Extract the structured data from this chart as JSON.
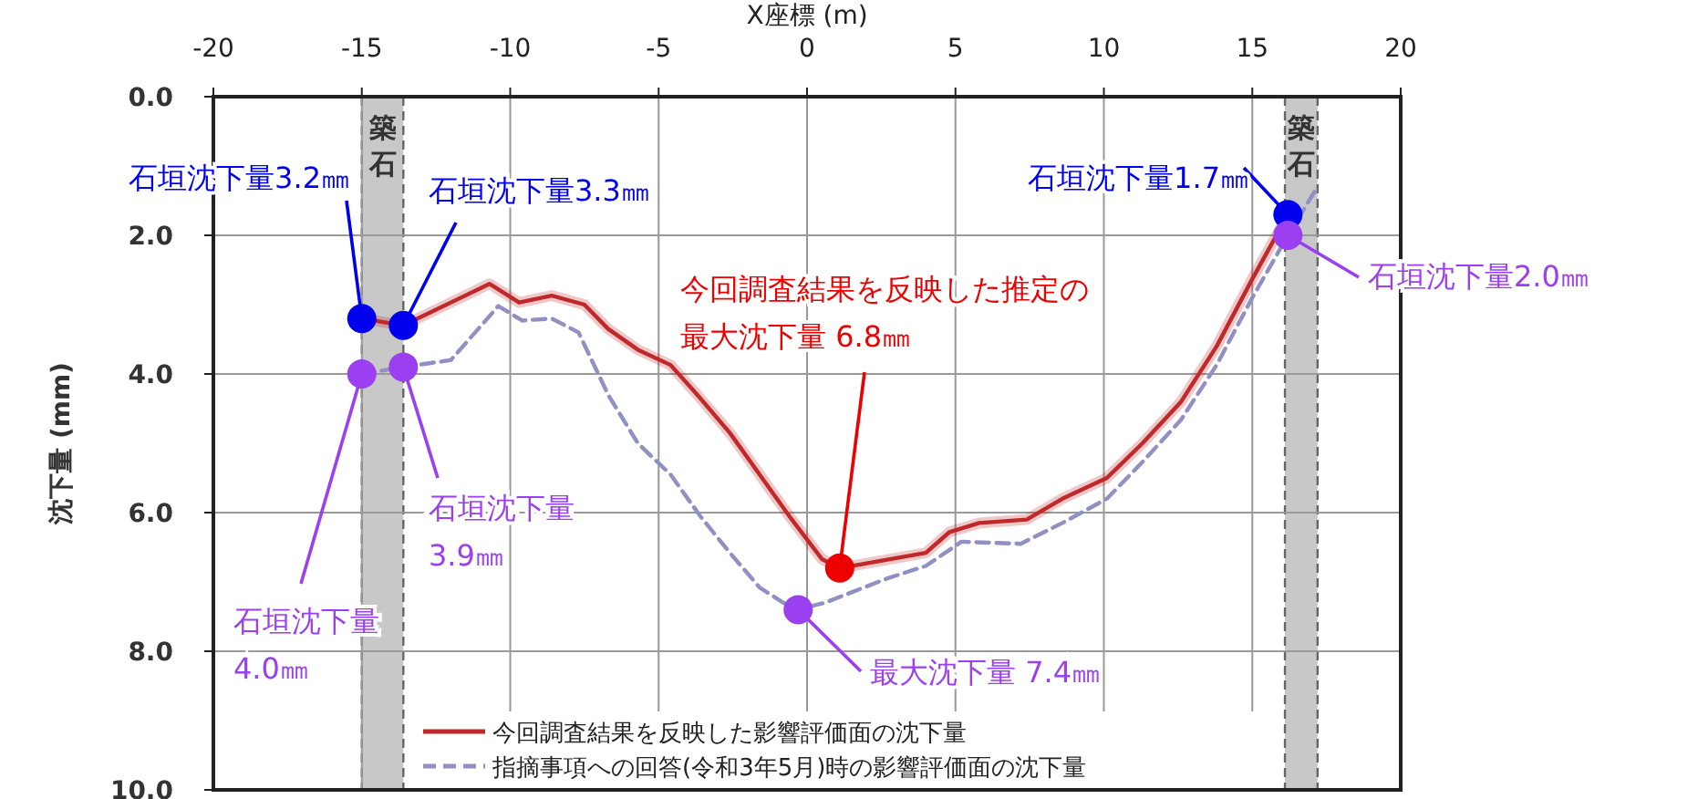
{
  "chart_data": {
    "type": "line",
    "xlabel": "X座標 (m)",
    "ylabel": "沈下量 (mm)",
    "xlim": [
      -20,
      20
    ],
    "xticks": [
      -20,
      -15,
      -10,
      -5,
      0,
      5,
      10,
      15,
      20
    ],
    "ylim": [
      10,
      0
    ],
    "yticks": [
      {
        "value": 0,
        "label": "0.0"
      },
      {
        "value": 2,
        "label": "2.0"
      },
      {
        "value": 4,
        "label": "4.0"
      },
      {
        "value": 6,
        "label": "6.0"
      },
      {
        "value": 8,
        "label": "8.0"
      },
      {
        "value": 10,
        "label": "10.0"
      }
    ],
    "grid": true,
    "legend": "bottom",
    "series": [
      {
        "name": "今回調査結果を反映した影響評価面の沈下量",
        "color": "#c0282a",
        "line_style": "solid",
        "x": [
          -15,
          -13.6,
          -10.7,
          -9.7,
          -8.6,
          -7.5,
          -6.7,
          -5.7,
          -4.6,
          -3.7,
          -2.6,
          -1.6,
          -0.6,
          0.5,
          1.1,
          2.7,
          4.0,
          4.8,
          5.8,
          7.4,
          8.6,
          10.1,
          11.3,
          12.6,
          13.8,
          15.0,
          16.2
        ],
        "values": [
          3.2,
          3.3,
          2.7,
          2.97,
          2.87,
          3.0,
          3.35,
          3.65,
          3.87,
          4.3,
          4.85,
          5.45,
          6.05,
          6.67,
          6.8,
          6.68,
          6.58,
          6.28,
          6.15,
          6.1,
          5.8,
          5.5,
          5.0,
          4.4,
          3.6,
          2.63,
          1.7
        ]
      },
      {
        "name": "指摘事項への回答(令和3年5月)時の影響評価面の沈下量",
        "color": "#9090c4",
        "line_style": "dashed",
        "x": [
          -15,
          -13.6,
          -12.0,
          -10.4,
          -9.6,
          -8.6,
          -7.7,
          -6.7,
          -5.7,
          -4.6,
          -3.6,
          -2.6,
          -1.6,
          -0.8,
          -0.3,
          0.6,
          2.7,
          4.0,
          5.2,
          7.2,
          8.6,
          10.1,
          11.3,
          12.6,
          13.8,
          15.0,
          16.2,
          17.2
        ],
        "values": [
          4.0,
          3.9,
          3.8,
          3.02,
          3.23,
          3.2,
          3.4,
          4.3,
          5.0,
          5.45,
          6.05,
          6.58,
          7.08,
          7.3,
          7.4,
          7.3,
          6.95,
          6.77,
          6.42,
          6.45,
          6.15,
          5.8,
          5.27,
          4.66,
          3.87,
          2.9,
          2.0,
          1.3
        ]
      },
      {
        "type": "scatter",
        "color": "#0000ee",
        "marker": "circle",
        "x": [
          -15,
          -13.6,
          16.2
        ],
        "values": [
          3.2,
          3.3,
          1.7
        ]
      },
      {
        "type": "scatter",
        "color": "#9a40f0",
        "marker": "circle",
        "x": [
          -15,
          -13.6,
          -0.3,
          16.2
        ],
        "values": [
          4.0,
          3.9,
          7.4,
          2.0
        ]
      },
      {
        "type": "scatter",
        "color": "#ee0000",
        "marker": "circle",
        "x": [
          1.1
        ],
        "values": [
          6.8
        ]
      }
    ],
    "bands": [
      {
        "axis": "x",
        "from": -15.0,
        "to": -13.6,
        "label": "築石",
        "color": "#c8c8c8"
      },
      {
        "axis": "x",
        "from": 16.1,
        "to": 17.2,
        "label": "築石",
        "color": "#c8c8c8"
      }
    ],
    "annotations": [
      {
        "text": "石垣沈下量3.2㎜",
        "x": -15,
        "y": 3.2
      },
      {
        "text": "石垣沈下量3.3㎜",
        "x": -13.6,
        "y": 3.3
      },
      {
        "text": "石垣沈下量1.7㎜",
        "x": 16.2,
        "y": 1.7
      },
      {
        "text": "石垣沈下量2.0㎜",
        "x": 16.2,
        "y": 2.0
      },
      {
        "text": "石垣沈下量\n4.0㎜",
        "x": -15,
        "y": 4.0
      },
      {
        "text": "石垣沈下量\n3.9㎜",
        "x": -13.6,
        "y": 3.9
      },
      {
        "text": "今回調査結果を反映した推定の最大沈下量 6.8㎜",
        "x": 1.1,
        "y": 6.8
      },
      {
        "text": "最大沈下量 7.4㎜",
        "x": -0.3,
        "y": 7.4
      }
    ]
  }
}
